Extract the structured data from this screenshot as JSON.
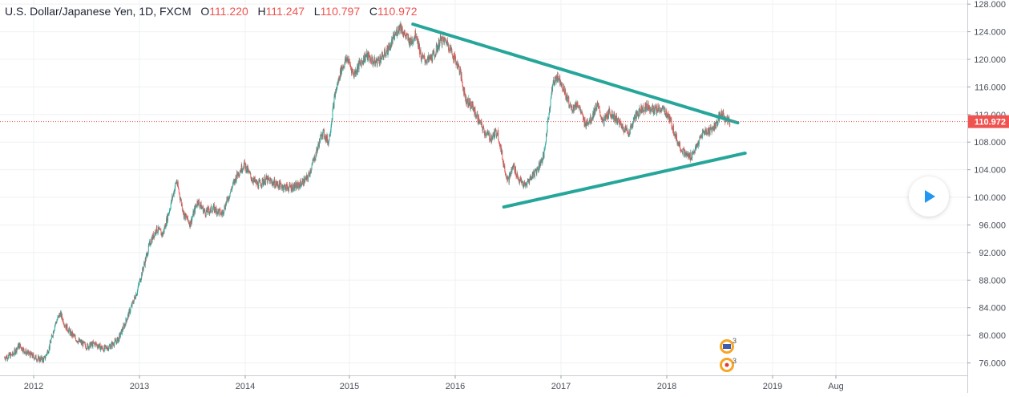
{
  "header": {
    "symbol": "U.S. Dollar/Japanese Yen, 1D, FXCM",
    "o_label": "O",
    "o_value": "111.220",
    "h_label": "H",
    "h_value": "111.247",
    "l_label": "L",
    "l_value": "110.797",
    "c_label": "C",
    "c_value": "110.972"
  },
  "chart_data": {
    "type": "candlestick",
    "title": "U.S. Dollar/Japanese Yen, 1D, FXCM",
    "y_ticks": [
      76,
      80,
      84,
      88,
      92,
      96,
      100,
      104,
      108,
      112,
      116,
      120,
      124,
      128
    ],
    "y_tick_labels": [
      "76.000",
      "80.000",
      "84.000",
      "88.000",
      "92.000",
      "96.000",
      "100.000",
      "104.000",
      "108.000",
      "112.000",
      "116.000",
      "120.000",
      "124.000",
      "128.000"
    ],
    "ylim": [
      74.2,
      128.6
    ],
    "x_ticks": [
      {
        "label": "2012",
        "t": 2012.0
      },
      {
        "label": "2013",
        "t": 2013.0
      },
      {
        "label": "2014",
        "t": 2014.0
      },
      {
        "label": "2015",
        "t": 2015.0
      },
      {
        "label": "2016",
        "t": 2016.0
      },
      {
        "label": "2017",
        "t": 2017.0
      },
      {
        "label": "2018",
        "t": 2018.0
      },
      {
        "label": "2019",
        "t": 2019.0
      },
      {
        "label": "Aug",
        "t": 2019.6
      }
    ],
    "last_price": 110.972,
    "last_price_label": "110.972",
    "price_path": [
      [
        2011.72,
        76.8
      ],
      [
        2011.8,
        77.2
      ],
      [
        2011.86,
        78.6
      ],
      [
        2011.92,
        77.6
      ],
      [
        2011.99,
        77.0
      ],
      [
        2012.04,
        76.6
      ],
      [
        2012.1,
        76.5
      ],
      [
        2012.15,
        78.4
      ],
      [
        2012.2,
        81.5
      ],
      [
        2012.25,
        83.2
      ],
      [
        2012.3,
        81.4
      ],
      [
        2012.35,
        80.3
      ],
      [
        2012.42,
        79.2
      ],
      [
        2012.5,
        78.4
      ],
      [
        2012.58,
        78.8
      ],
      [
        2012.66,
        78.0
      ],
      [
        2012.72,
        78.4
      ],
      [
        2012.8,
        79.4
      ],
      [
        2012.86,
        81.6
      ],
      [
        2012.92,
        84.0
      ],
      [
        2012.98,
        86.5
      ],
      [
        2013.04,
        90.0
      ],
      [
        2013.1,
        93.4
      ],
      [
        2013.16,
        95.4
      ],
      [
        2013.22,
        94.6
      ],
      [
        2013.28,
        98.0
      ],
      [
        2013.35,
        102.4
      ],
      [
        2013.42,
        97.5
      ],
      [
        2013.48,
        96.2
      ],
      [
        2013.55,
        99.5
      ],
      [
        2013.62,
        97.8
      ],
      [
        2013.7,
        98.4
      ],
      [
        2013.78,
        97.6
      ],
      [
        2013.85,
        100.4
      ],
      [
        2013.92,
        103.2
      ],
      [
        2013.99,
        104.8
      ],
      [
        2014.06,
        102.8
      ],
      [
        2014.12,
        101.8
      ],
      [
        2014.2,
        102.6
      ],
      [
        2014.3,
        101.9
      ],
      [
        2014.4,
        101.4
      ],
      [
        2014.5,
        101.6
      ],
      [
        2014.6,
        102.8
      ],
      [
        2014.68,
        106.4
      ],
      [
        2014.74,
        109.5
      ],
      [
        2014.8,
        108.0
      ],
      [
        2014.86,
        114.8
      ],
      [
        2014.92,
        118.5
      ],
      [
        2014.98,
        120.2
      ],
      [
        2015.04,
        117.8
      ],
      [
        2015.1,
        119.4
      ],
      [
        2015.16,
        120.6
      ],
      [
        2015.24,
        119.5
      ],
      [
        2015.32,
        120.5
      ],
      [
        2015.38,
        121.8
      ],
      [
        2015.44,
        123.8
      ],
      [
        2015.48,
        124.9
      ],
      [
        2015.52,
        123.6
      ],
      [
        2015.58,
        122.4
      ],
      [
        2015.63,
        123.8
      ],
      [
        2015.68,
        120.2
      ],
      [
        2015.74,
        119.8
      ],
      [
        2015.8,
        120.6
      ],
      [
        2015.86,
        122.8
      ],
      [
        2015.92,
        122.6
      ],
      [
        2015.98,
        120.6
      ],
      [
        2016.04,
        118.6
      ],
      [
        2016.1,
        114.2
      ],
      [
        2016.16,
        113.2
      ],
      [
        2016.22,
        111.2
      ],
      [
        2016.28,
        109.4
      ],
      [
        2016.34,
        108.6
      ],
      [
        2016.4,
        109.6
      ],
      [
        2016.46,
        104.6
      ],
      [
        2016.5,
        102.4
      ],
      [
        2016.55,
        104.6
      ],
      [
        2016.6,
        102.6
      ],
      [
        2016.66,
        101.6
      ],
      [
        2016.72,
        103.0
      ],
      [
        2016.78,
        104.2
      ],
      [
        2016.84,
        106.2
      ],
      [
        2016.88,
        111.6
      ],
      [
        2016.92,
        116.2
      ],
      [
        2016.96,
        117.6
      ],
      [
        2017.0,
        116.8
      ],
      [
        2017.05,
        114.6
      ],
      [
        2017.1,
        112.8
      ],
      [
        2017.16,
        113.6
      ],
      [
        2017.22,
        110.8
      ],
      [
        2017.28,
        111.2
      ],
      [
        2017.34,
        113.4
      ],
      [
        2017.4,
        110.9
      ],
      [
        2017.46,
        112.4
      ],
      [
        2017.52,
        111.4
      ],
      [
        2017.58,
        110.2
      ],
      [
        2017.64,
        109.4
      ],
      [
        2017.7,
        111.6
      ],
      [
        2017.76,
        112.8
      ],
      [
        2017.82,
        113.2
      ],
      [
        2017.88,
        112.6
      ],
      [
        2017.94,
        112.8
      ],
      [
        2017.99,
        112.4
      ],
      [
        2018.04,
        110.8
      ],
      [
        2018.1,
        108.2
      ],
      [
        2018.16,
        106.4
      ],
      [
        2018.22,
        105.8
      ],
      [
        2018.28,
        107.2
      ],
      [
        2018.34,
        109.4
      ],
      [
        2018.4,
        109.6
      ],
      [
        2018.46,
        110.4
      ],
      [
        2018.52,
        112.2
      ],
      [
        2018.56,
        111.2
      ],
      [
        2018.6,
        110.97
      ]
    ],
    "trendlines": [
      {
        "name": "upper",
        "from": [
          2015.6,
          125.1
        ],
        "to": [
          2018.67,
          110.8
        ]
      },
      {
        "name": "lower",
        "from": [
          2016.46,
          98.6
        ],
        "to": [
          2018.74,
          106.4
        ]
      }
    ],
    "colors": {
      "up": "#26a69a",
      "down": "#ef5350",
      "trendline": "#26a69a",
      "last_price": "#ef5350",
      "grid": "#eef0f3"
    },
    "grid": true
  },
  "badge": {
    "count_top": "3",
    "count_bottom": "3"
  }
}
